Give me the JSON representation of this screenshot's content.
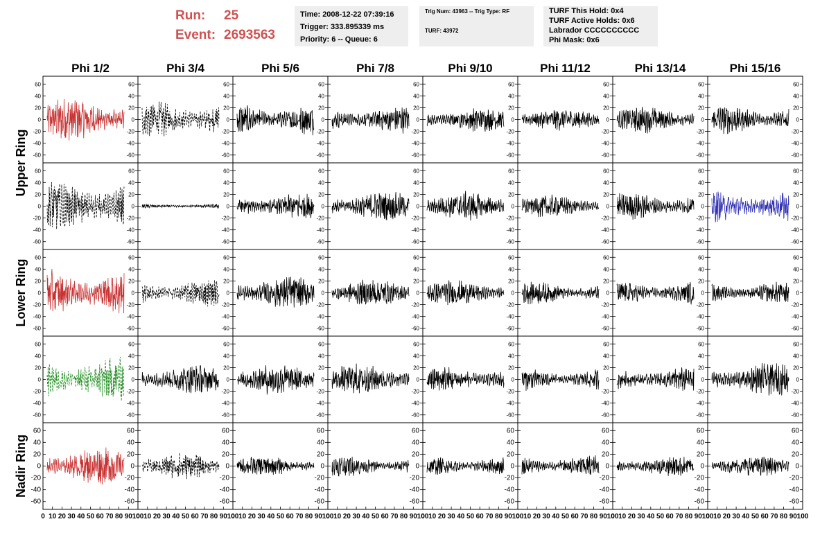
{
  "run_info": {
    "run_label": "Run:",
    "run_value": "25",
    "event_label": "Event:",
    "event_value": "2693563"
  },
  "time_box": {
    "line1": "Time: 2008-12-22 07:39:16",
    "line2": "Trigger: 333.895339 ms",
    "line3": "Priority: 6 -- Queue: 6"
  },
  "trig_box": {
    "line1": "Trig Num: 43963 -- Trig Type: RF",
    "line2": "TURF: 43972"
  },
  "turf_box": {
    "line1": "TURF This Hold: 0x4",
    "line2": "TURF Active Holds: 0x6",
    "line3": "Labrador CCCCCCCCCC",
    "line4": "Phi Mask: 0x6"
  },
  "colors": {
    "red": "#c83232",
    "green": "#1f8c1f",
    "blue": "#3232b4",
    "black": "#000000",
    "header_bg": "#eeeeee",
    "run_text": "#d05050"
  },
  "chart_data": {
    "type": "line",
    "column_titles": [
      "Phi 1/2",
      "Phi 3/4",
      "Phi 5/6",
      "Phi 7/8",
      "Phi 9/10",
      "Phi 11/12",
      "Phi 13/14",
      "Phi 15/16"
    ],
    "ring_labels": [
      "Upper Ring",
      "Lower Ring",
      "Nadir Ring"
    ],
    "xlim": [
      0,
      100
    ],
    "ylim": [
      -65,
      65
    ],
    "y_ticks": [
      -60,
      -40,
      -20,
      0,
      20,
      40,
      60
    ],
    "x_tick_labels": [
      "0",
      "10",
      "20",
      "30",
      "40",
      "50",
      "60",
      "70",
      "80",
      "90",
      "100"
    ],
    "rows": [
      {
        "styles": [
          "solid-red",
          "dashed-black",
          "solid-black",
          "solid-black",
          "solid-black",
          "solid-black",
          "solid-black",
          "solid-black"
        ],
        "amplitudes": [
          20,
          17,
          15,
          12,
          11,
          10,
          12,
          13
        ]
      },
      {
        "styles": [
          "dashed-black",
          "solid-black",
          "solid-black",
          "solid-black",
          "solid-black",
          "solid-black",
          "solid-black",
          "solid-blue"
        ],
        "amplitudes": [
          24,
          2,
          12,
          13,
          13,
          10,
          12,
          15
        ]
      },
      {
        "styles": [
          "solid-red",
          "dashed-black",
          "solid-black",
          "solid-black",
          "solid-black",
          "solid-black",
          "solid-black",
          "solid-black"
        ],
        "amplitudes": [
          22,
          12,
          15,
          12,
          11,
          10,
          11,
          10
        ]
      },
      {
        "styles": [
          "dashed-green",
          "solid-black",
          "solid-black",
          "solid-black",
          "solid-black",
          "solid-black",
          "solid-black",
          "solid-black"
        ],
        "amplitudes": [
          20,
          13,
          14,
          14,
          12,
          10,
          11,
          15
        ]
      },
      {
        "styles": [
          "solid-red",
          "dashed-black",
          "solid-black",
          "solid-black",
          "solid-black",
          "solid-black",
          "solid-black",
          "solid-black"
        ],
        "amplitudes": [
          17,
          12,
          9,
          9,
          9,
          10,
          9,
          9
        ]
      }
    ]
  }
}
